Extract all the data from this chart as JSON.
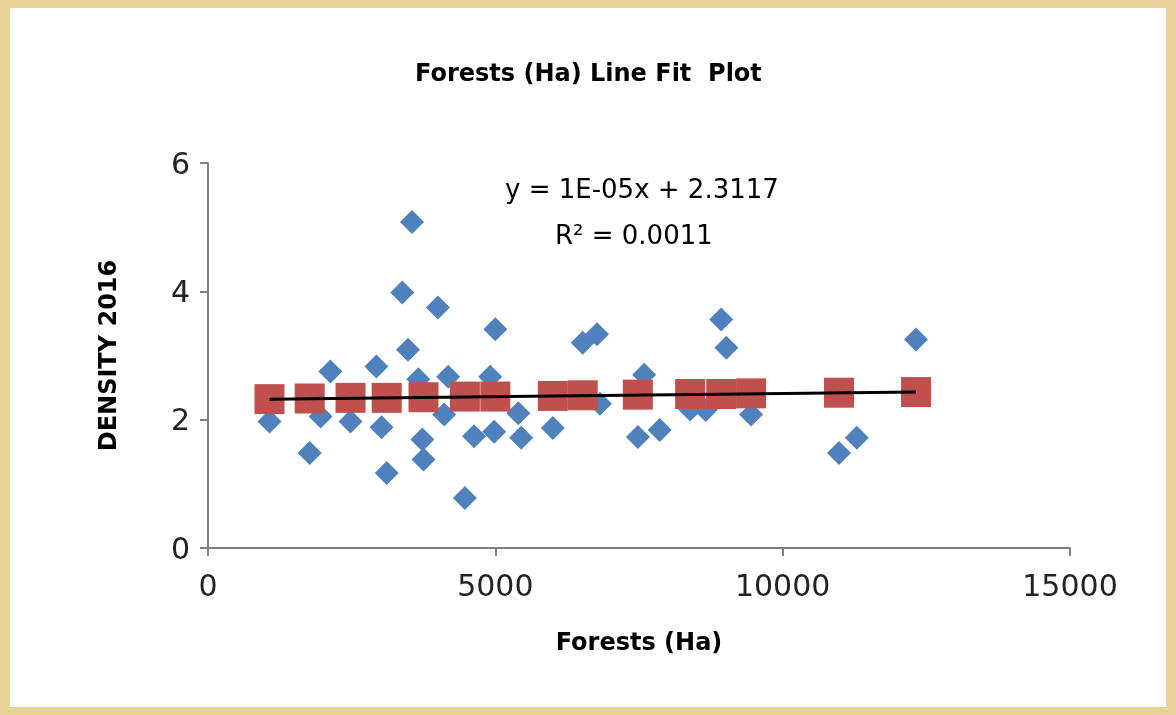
{
  "chart_data": {
    "type": "scatter",
    "title": "Forests (Ha) Line Fit  Plot",
    "xlabel": "Forests (Ha)",
    "ylabel": "DENSITY 2016",
    "xlim": [
      0,
      15000
    ],
    "xticks": [
      0,
      5000,
      10000,
      15000
    ],
    "ylim": [
      0,
      6
    ],
    "yticks": [
      0,
      2,
      4,
      6
    ],
    "grid": false,
    "annotations": [
      "y = 1E-05x + 2.3117",
      "R² = 0.0011"
    ],
    "series": [
      {
        "marker": "diamond",
        "color": "#4f81bd",
        "x": [
          1070,
          1770,
          1960,
          2130,
          2480,
          2930,
          3020,
          3110,
          3380,
          3480,
          3550,
          3660,
          3730,
          3750,
          4000,
          4110,
          4180,
          4470,
          4630,
          4910,
          4980,
          5000,
          5450,
          5400,
          6000,
          6520,
          6770,
          6820,
          7480,
          7590,
          7860,
          8390,
          8660,
          8930,
          9020,
          9450,
          10980,
          11290,
          12320
        ],
        "values": [
          1.97,
          1.48,
          2.05,
          2.75,
          1.97,
          2.83,
          1.88,
          1.17,
          3.98,
          3.09,
          5.08,
          2.63,
          1.69,
          1.38,
          3.75,
          2.08,
          2.67,
          0.78,
          1.74,
          2.67,
          1.81,
          3.41,
          1.72,
          2.1,
          1.87,
          3.2,
          3.33,
          2.25,
          1.73,
          2.7,
          1.84,
          2.16,
          2.15,
          3.56,
          3.12,
          2.08,
          1.48,
          1.72,
          3.25
        ]
      },
      {
        "marker": "square",
        "color": "#c0504d",
        "x": [
          1070,
          1770,
          2480,
          3110,
          3750,
          4470,
          5000,
          6000,
          6520,
          7480,
          8390,
          8930,
          9450,
          10980,
          12320
        ],
        "values": [
          2.32,
          2.33,
          2.34,
          2.34,
          2.35,
          2.36,
          2.36,
          2.37,
          2.38,
          2.39,
          2.4,
          2.4,
          2.41,
          2.42,
          2.43
        ]
      },
      {
        "type": "line",
        "marker": "none",
        "line_style": "solid",
        "color": "#000000",
        "x": [
          1070,
          12320
        ],
        "values": [
          2.32,
          2.43
        ]
      }
    ]
  }
}
